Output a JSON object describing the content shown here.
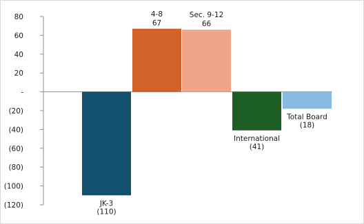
{
  "chart_data": {
    "type": "bar",
    "title": "",
    "xlabel": "",
    "ylabel": "",
    "categories": [
      "JK-3",
      "4-8",
      "Sec. 9-12",
      "International",
      "Total Board"
    ],
    "values": [
      -110,
      67,
      66,
      -41,
      -18
    ],
    "value_labels": [
      "(110)",
      "67",
      "66",
      "(41)",
      "(18)"
    ],
    "bar_colors": [
      "#13506E",
      "#D2622A",
      "#EFA58B",
      "#1D5E24",
      "#86BCE4"
    ],
    "ylim": [
      -120,
      80
    ],
    "yticks": [
      80,
      60,
      40,
      20,
      0,
      -20,
      -40,
      -60,
      -80,
      -100,
      -120
    ],
    "ytick_labels": [
      "80",
      "60",
      "40",
      "20",
      "-",
      "(20)",
      "(40)",
      "(60)",
      "(80)",
      "(100)",
      "(120)"
    ],
    "grid": false,
    "legend": "none"
  }
}
